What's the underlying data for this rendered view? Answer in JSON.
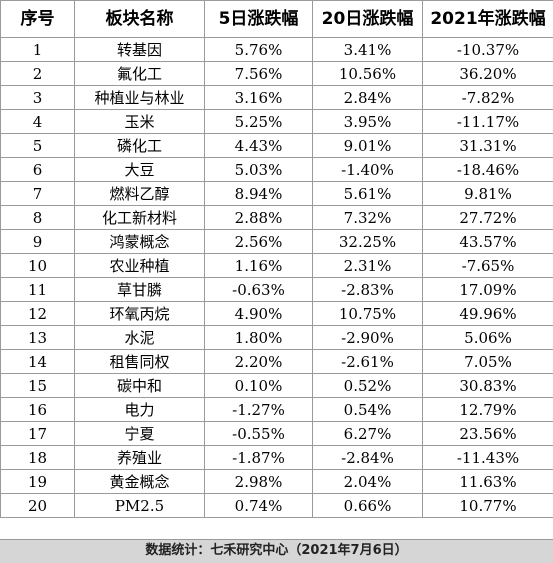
{
  "table": {
    "headers": [
      "序号",
      "板块名称",
      "5日涨跌幅",
      "20日涨跌幅",
      "2021年涨跌幅"
    ],
    "rows": [
      [
        "1",
        "转基因",
        "5.76%",
        "3.41%",
        "-10.37%"
      ],
      [
        "2",
        "氟化工",
        "7.56%",
        "10.56%",
        "36.20%"
      ],
      [
        "3",
        "种植业与林业",
        "3.16%",
        "2.84%",
        "-7.82%"
      ],
      [
        "4",
        "玉米",
        "5.25%",
        "3.95%",
        "-11.17%"
      ],
      [
        "5",
        "磷化工",
        "4.43%",
        "9.01%",
        "31.31%"
      ],
      [
        "6",
        "大豆",
        "5.03%",
        "-1.40%",
        "-18.46%"
      ],
      [
        "7",
        "燃料乙醇",
        "8.94%",
        "5.61%",
        "9.81%"
      ],
      [
        "8",
        "化工新材料",
        "2.88%",
        "7.32%",
        "27.72%"
      ],
      [
        "9",
        "鸿蒙概念",
        "2.56%",
        "32.25%",
        "43.57%"
      ],
      [
        "10",
        "农业种植",
        "1.16%",
        "2.31%",
        "-7.65%"
      ],
      [
        "11",
        "草甘膦",
        "-0.63%",
        "-2.83%",
        "17.09%"
      ],
      [
        "12",
        "环氧丙烷",
        "4.90%",
        "10.75%",
        "49.96%"
      ],
      [
        "13",
        "水泥",
        "1.80%",
        "-2.90%",
        "5.06%"
      ],
      [
        "14",
        "租售同权",
        "2.20%",
        "-2.61%",
        "7.05%"
      ],
      [
        "15",
        "碳中和",
        "0.10%",
        "0.52%",
        "30.83%"
      ],
      [
        "16",
        "电力",
        "-1.27%",
        "0.54%",
        "12.79%"
      ],
      [
        "17",
        "宁夏",
        "-0.55%",
        "6.27%",
        "23.56%"
      ],
      [
        "18",
        "养殖业",
        "-1.87%",
        "-2.84%",
        "-11.43%"
      ],
      [
        "19",
        "黄金概念",
        "2.98%",
        "2.04%",
        "11.63%"
      ],
      [
        "20",
        "PM2.5",
        "0.74%",
        "0.66%",
        "10.77%"
      ]
    ]
  },
  "footer": "数据统计：七禾研究中心（2021年7月6日）"
}
